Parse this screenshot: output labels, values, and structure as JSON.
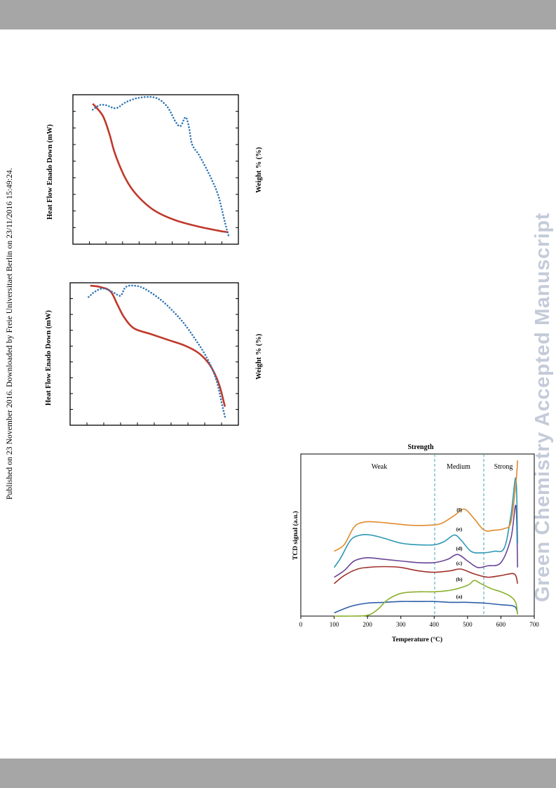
{
  "published_line": "Published on 23 November 2016. Downloaded by Freie Universitaet Berlin on 23/11/2016 15:49:24.",
  "watermark": "Green Chemistry Accepted Manuscript",
  "colors": {
    "heat_flow": "#c0392b",
    "weight": "#2e75b6",
    "band": "#a6a6a6",
    "watermark": "#c4cbd8"
  },
  "tga_top": {
    "y1_label": "Heat Flow Enado Down (mW)",
    "y2_label": "Weight % (%)"
  },
  "tga_bottom": {
    "y1_label": "Heat Flow Enado Down (mW)",
    "y2_label": "Weight % (%)"
  },
  "tpd": {
    "title": "Strength",
    "xlabel": "Temperature (°C)",
    "ylabel": "TCD signal (a.u.)",
    "regions": [
      "Weak",
      "Medium",
      "Strong"
    ],
    "boundaries": [
      400,
      550
    ]
  },
  "chart_data": [
    {
      "type": "line",
      "title": "",
      "ylabel": "Heat Flow Enado Down (mW)",
      "y2label": "Weight % (%)",
      "x_range": [
        0,
        100
      ],
      "y_range": [
        0,
        100
      ],
      "series": [
        {
          "color": "#c0392b",
          "style": "solid",
          "x": [
            12,
            18,
            22,
            25,
            30,
            35,
            42,
            50,
            62,
            75,
            88,
            94
          ],
          "y": [
            94,
            86,
            74,
            62,
            48,
            38,
            29,
            22,
            16,
            12,
            9,
            8
          ]
        },
        {
          "color": "#2e75b6",
          "style": "dotted",
          "x": [
            12,
            16,
            20,
            26,
            32,
            40,
            50,
            57,
            62,
            65,
            68,
            70,
            72,
            76,
            80,
            84,
            88,
            92,
            94
          ],
          "y": [
            90,
            93,
            93,
            91,
            95,
            98,
            98,
            92,
            82,
            79,
            85,
            79,
            67,
            60,
            52,
            43,
            32,
            14,
            6
          ]
        }
      ]
    },
    {
      "type": "line",
      "title": "",
      "ylabel": "Heat Flow Enado Down (mW)",
      "y2label": "Weight % (%)",
      "x_range": [
        0,
        100
      ],
      "y_range": [
        0,
        100
      ],
      "series": [
        {
          "color": "#c0392b",
          "style": "solid",
          "x": [
            12,
            18,
            24,
            28,
            32,
            38,
            48,
            58,
            68,
            76,
            82,
            86,
            89,
            92
          ],
          "y": [
            98,
            97,
            94,
            85,
            76,
            68,
            64,
            60,
            56,
            51,
            44,
            36,
            27,
            13
          ]
        },
        {
          "color": "#2e75b6",
          "style": "dotted",
          "x": [
            11,
            15,
            20,
            26,
            30,
            33,
            38,
            44,
            54,
            62,
            68,
            74,
            80,
            85,
            88,
            90,
            92
          ],
          "y": [
            90,
            94,
            96,
            93,
            91,
            97,
            98,
            96,
            88,
            79,
            71,
            61,
            50,
            38,
            27,
            16,
            6
          ]
        }
      ]
    },
    {
      "type": "line",
      "title": "Strength",
      "xlabel": "Temperature (°C)",
      "ylabel": "TCD signal (a.u.)",
      "xlim": [
        0,
        700
      ],
      "x_ticks": [
        0,
        100,
        200,
        300,
        400,
        500,
        600,
        700
      ],
      "ylim": [
        0,
        100
      ],
      "series": [
        {
          "name": "(a)",
          "color": "#2e5fa8",
          "x": [
            100,
            150,
            200,
            250,
            300,
            350,
            400,
            450,
            500,
            550,
            600,
            640,
            650
          ],
          "y": [
            2,
            6,
            8,
            8.5,
            9,
            9,
            9,
            8.5,
            8.5,
            8,
            7,
            6,
            2
          ]
        },
        {
          "name": "(b)",
          "color": "#8ab02c",
          "x": [
            100,
            150,
            200,
            230,
            260,
            300,
            350,
            400,
            450,
            500,
            520,
            540,
            570,
            600,
            630,
            645,
            650
          ],
          "y": [
            0,
            0,
            0.5,
            4,
            10,
            14,
            15,
            15,
            16,
            19,
            22,
            20,
            17,
            15,
            12,
            8,
            1
          ]
        },
        {
          "name": "(c)",
          "color": "#a0312b",
          "x": [
            100,
            130,
            170,
            200,
            250,
            300,
            350,
            400,
            450,
            480,
            520,
            560,
            600,
            640,
            650
          ],
          "y": [
            20,
            25,
            29,
            30,
            30.5,
            30,
            28,
            27,
            28,
            29,
            26,
            24,
            25,
            26,
            20
          ]
        },
        {
          "name": "(d)",
          "color": "#6a4596",
          "x": [
            100,
            130,
            160,
            200,
            250,
            300,
            350,
            400,
            440,
            470,
            500,
            530,
            560,
            600,
            630,
            645,
            650
          ],
          "y": [
            24,
            28,
            34,
            36,
            35,
            34,
            33,
            33,
            35,
            38,
            34,
            30,
            31,
            33,
            48,
            68,
            30
          ]
        },
        {
          "name": "(e)",
          "color": "#2b97b3",
          "x": [
            100,
            120,
            150,
            180,
            210,
            250,
            300,
            350,
            400,
            430,
            460,
            480,
            510,
            540,
            580,
            610,
            630,
            645,
            650
          ],
          "y": [
            30,
            36,
            47,
            50,
            50,
            48,
            45,
            44,
            44,
            46,
            50,
            47,
            40,
            39,
            40,
            42,
            62,
            85,
            45
          ]
        },
        {
          "name": "(f)",
          "color": "#e08a2c",
          "x": [
            100,
            130,
            160,
            190,
            230,
            280,
            330,
            380,
            420,
            460,
            490,
            520,
            550,
            580,
            610,
            630,
            645,
            650
          ],
          "y": [
            40,
            44,
            55,
            58,
            58,
            57,
            56,
            56,
            57,
            62,
            66,
            60,
            53,
            53,
            54,
            58,
            82,
            96
          ]
        }
      ]
    }
  ]
}
